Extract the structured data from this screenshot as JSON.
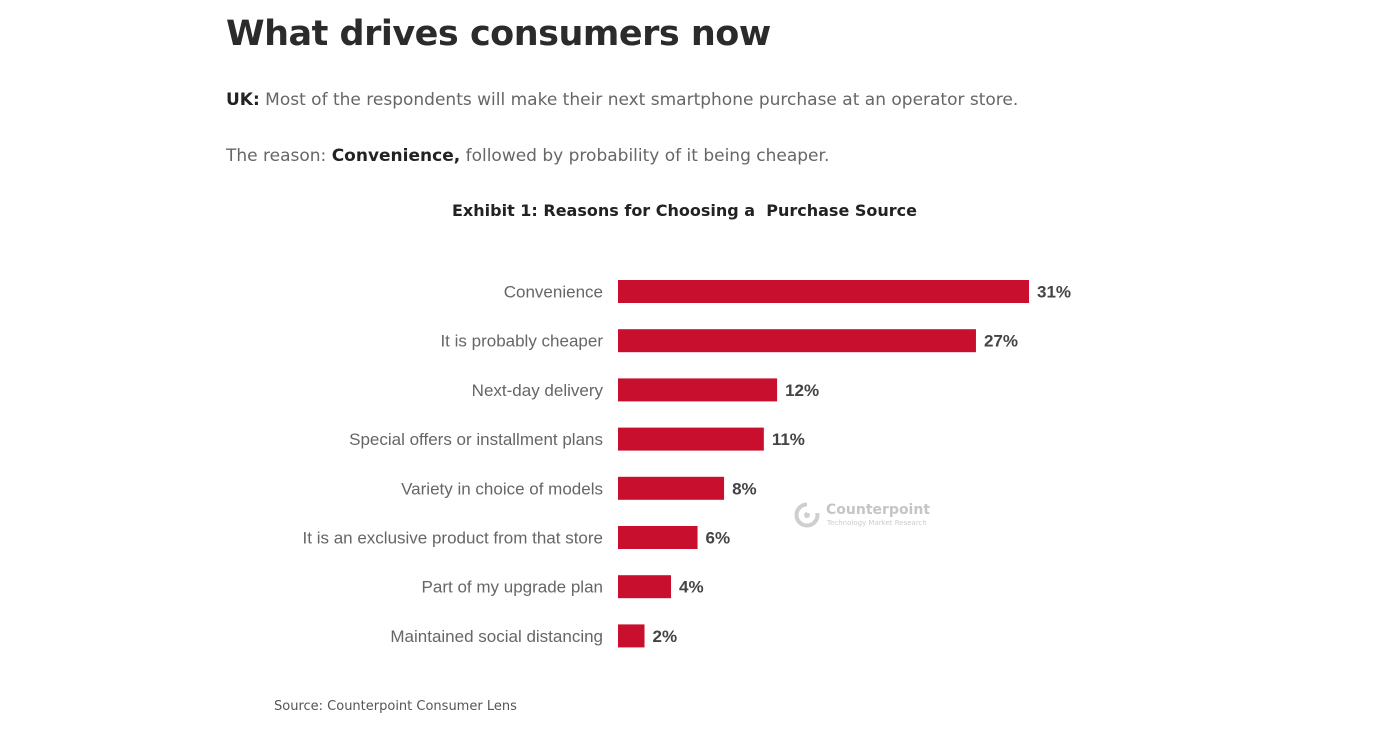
{
  "header": {
    "title": "What drives consumers now"
  },
  "paragraphs": {
    "p1_bold": "UK:",
    "p1_text": " Most of the respondents will make their next smartphone purchase at an operator store.",
    "p2_text": "The reason: ",
    "p2_bold": "Convenience,",
    "p2_rest": " followed by probability of it being cheaper."
  },
  "exhibit": {
    "title": "Exhibit 1: Reasons for Choosing a  Purchase Source"
  },
  "source": "Source: Counterpoint Consumer Lens",
  "watermark": {
    "name": "Counterpoint",
    "tagline": "Technology Market Research"
  },
  "colors": {
    "bar": "#c8102e",
    "label": "#666666",
    "value": "#444444"
  },
  "chart_data": {
    "type": "bar",
    "orientation": "horizontal",
    "categories": [
      "Convenience",
      "It is probably cheaper",
      "Next-day delivery",
      "Special offers or installment plans",
      "Variety in choice of models",
      "It is an exclusive product from that store",
      "Part of my upgrade plan",
      "Maintained social distancing"
    ],
    "values": [
      31,
      27,
      12,
      11,
      8,
      6,
      4,
      2
    ],
    "value_labels": [
      "31%",
      "27%",
      "12%",
      "11%",
      "8%",
      "6%",
      "4%",
      "2%"
    ],
    "title": "Exhibit 1: Reasons for Choosing a  Purchase Source",
    "xlim": [
      0,
      31
    ],
    "grid": false,
    "legend": "none"
  }
}
